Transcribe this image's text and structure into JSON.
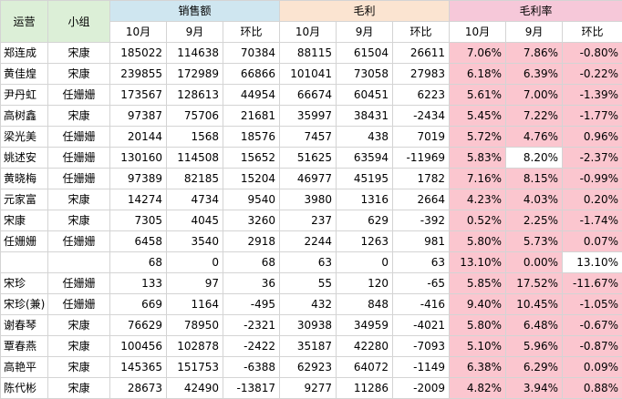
{
  "header": {
    "yunying": "运营",
    "xiaozu": "小组",
    "sales": "销售额",
    "gross": "毛利",
    "rate": "毛利率",
    "sub": [
      "10月",
      "9月",
      "环比",
      "10月",
      "9月",
      "环比",
      "10月",
      "9月",
      "环比"
    ]
  },
  "rows": [
    {
      "name": "郑连成",
      "group": "宋康",
      "cells": [
        "185022",
        "114638",
        "70384",
        "88115",
        "61504",
        "26611",
        "7.06%",
        "7.86%",
        "-0.80%"
      ]
    },
    {
      "name": "黄佳煌",
      "group": "宋康",
      "cells": [
        "239855",
        "172989",
        "66866",
        "101041",
        "73058",
        "27983",
        "6.18%",
        "6.39%",
        "-0.22%"
      ]
    },
    {
      "name": "尹丹虹",
      "group": "任姗姗",
      "cells": [
        "173567",
        "128613",
        "44954",
        "66674",
        "60451",
        "6223",
        "5.61%",
        "7.00%",
        "-1.39%"
      ]
    },
    {
      "name": "高树鑫",
      "group": "宋康",
      "cells": [
        "97387",
        "75706",
        "21681",
        "35997",
        "38431",
        "-2434",
        "5.45%",
        "7.22%",
        "-1.77%"
      ]
    },
    {
      "name": "梁光美",
      "group": "任姗姗",
      "cells": [
        "20144",
        "1568",
        "18576",
        "7457",
        "438",
        "7019",
        "5.72%",
        "4.76%",
        "0.96%"
      ]
    },
    {
      "name": "姚述安",
      "group": "任姗姗",
      "cells": [
        "130160",
        "114508",
        "15652",
        "51625",
        "63594",
        "-11969",
        "5.83%",
        "8.20%",
        "-2.37%"
      ]
    },
    {
      "name": "黄晓梅",
      "group": "任姗姗",
      "cells": [
        "97389",
        "82185",
        "15204",
        "46977",
        "45195",
        "1782",
        "7.16%",
        "8.15%",
        "-0.99%"
      ]
    },
    {
      "name": "元家富",
      "group": "宋康",
      "cells": [
        "14274",
        "4734",
        "9540",
        "3980",
        "1316",
        "2664",
        "4.23%",
        "4.03%",
        "0.20%"
      ]
    },
    {
      "name": "宋康",
      "group": "宋康",
      "cells": [
        "7305",
        "4045",
        "3260",
        "237",
        "629",
        "-392",
        "0.52%",
        "2.25%",
        "-1.74%"
      ]
    },
    {
      "name": "任姗姗",
      "group": "任姗姗",
      "cells": [
        "6458",
        "3540",
        "2918",
        "2244",
        "1263",
        "981",
        "5.80%",
        "5.73%",
        "0.07%"
      ]
    },
    {
      "name": "",
      "group": "",
      "cells": [
        "68",
        "0",
        "68",
        "63",
        "0",
        "63",
        "13.10%",
        "0.00%",
        "13.10%"
      ]
    },
    {
      "name": "宋珍",
      "group": "任姗姗",
      "cells": [
        "133",
        "97",
        "36",
        "55",
        "120",
        "-65",
        "5.85%",
        "17.52%",
        "-11.67%"
      ]
    },
    {
      "name": "宋珍(兼)",
      "group": "任姗姗",
      "cells": [
        "669",
        "1164",
        "-495",
        "432",
        "848",
        "-416",
        "9.40%",
        "10.45%",
        "-1.05%"
      ]
    },
    {
      "name": "谢春琴",
      "group": "宋康",
      "cells": [
        "76629",
        "78950",
        "-2321",
        "30938",
        "34959",
        "-4021",
        "5.80%",
        "6.48%",
        "-0.67%"
      ]
    },
    {
      "name": "覃春燕",
      "group": "宋康",
      "cells": [
        "100456",
        "102878",
        "-2422",
        "35187",
        "42280",
        "-7093",
        "5.10%",
        "5.96%",
        "-0.87%"
      ]
    },
    {
      "name": "高艳平",
      "group": "宋康",
      "cells": [
        "145365",
        "151753",
        "-6388",
        "62923",
        "64072",
        "-1149",
        "6.38%",
        "6.29%",
        "0.09%"
      ]
    },
    {
      "name": "陈代彬",
      "group": "宋康",
      "cells": [
        "28673",
        "42490",
        "-13817",
        "9277",
        "11286",
        "-2009",
        "4.82%",
        "3.94%",
        "0.88%"
      ]
    }
  ],
  "colors": {
    "rate_fill": "#fbc6cf",
    "sales_header": "#cfe6f0",
    "gross_header": "#fbe4d1",
    "rate_header": "#f6c8d9",
    "left_header": "#dcefd7"
  }
}
